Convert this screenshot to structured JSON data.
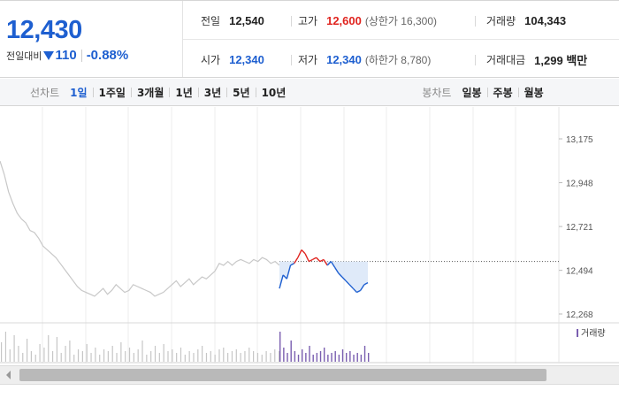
{
  "summary": {
    "current_price": "12,430",
    "change_label": "전일대비",
    "change_value": "110",
    "change_rate": "-0.88%",
    "prev_close": {
      "label": "전일",
      "value": "12,540"
    },
    "high": {
      "label": "고가",
      "value": "12,600",
      "sub": "(상한가 16,300)"
    },
    "volume": {
      "label": "거래량",
      "value": "104,343"
    },
    "open": {
      "label": "시가",
      "value": "12,340"
    },
    "low": {
      "label": "저가",
      "value": "12,340",
      "sub": "(하한가 8,780)"
    },
    "trade_amount": {
      "label": "거래대금",
      "value": "1,299 백만"
    }
  },
  "tabs": {
    "line_label": "선차트",
    "line_items": [
      "1일",
      "1주일",
      "3개월",
      "1년",
      "3년",
      "5년",
      "10년"
    ],
    "active": "1일",
    "candle_label": "봉차트",
    "candle_items": [
      "일봉",
      "주봉",
      "월봉"
    ]
  },
  "colors": {
    "up": "#e0241f",
    "down": "#1e5fd0",
    "history": "#c8c8c8",
    "volume_today": "#7a5fb0"
  },
  "chart_data": {
    "type": "line",
    "y_ticks": [
      "13,175",
      "12,948",
      "12,721",
      "12,494",
      "12,268"
    ],
    "ylim": [
      12268,
      13175
    ],
    "prev_close": 12540,
    "legend": "거래량",
    "history_series": [
      13060,
      12990,
      12900,
      12840,
      12790,
      12760,
      12740,
      12700,
      12690,
      12660,
      12620,
      12600,
      12580,
      12560,
      12530,
      12500,
      12470,
      12440,
      12410,
      12390,
      12380,
      12370,
      12360,
      12380,
      12400,
      12370,
      12390,
      12420,
      12400,
      12380,
      12390,
      12420,
      12410,
      12400,
      12390,
      12380,
      12360,
      12370,
      12380,
      12400,
      12420,
      12440,
      12410,
      12430,
      12450,
      12420,
      12440,
      12460,
      12450,
      12470,
      12490,
      12530,
      12520,
      12540,
      12520,
      12540,
      12550,
      12540,
      12530,
      12550,
      12540,
      12560,
      12550,
      12530,
      12540,
      12520
    ],
    "today_series": [
      12400,
      12470,
      12450,
      12520,
      12530,
      12560,
      12600,
      12580,
      12540,
      12550,
      12560,
      12540,
      12550,
      12520,
      12540,
      12510,
      12480,
      12460,
      12440,
      12420,
      12400,
      12380,
      12390,
      12420,
      12430
    ],
    "history_volume": [
      22,
      34,
      14,
      30,
      18,
      10,
      26,
      12,
      8,
      20,
      16,
      30,
      12,
      28,
      10,
      18,
      24,
      8,
      14,
      12,
      20,
      10,
      16,
      8,
      14,
      12,
      18,
      10,
      22,
      12,
      16,
      10,
      14,
      24,
      8,
      12,
      18,
      10,
      20,
      12,
      14,
      10,
      16,
      8,
      12,
      10,
      14,
      18,
      10,
      12,
      8,
      14,
      16,
      10,
      12,
      14,
      10,
      12,
      16,
      12,
      10,
      8,
      12,
      10,
      14,
      12
    ],
    "today_volume": [
      34,
      16,
      10,
      24,
      12,
      8,
      14,
      10,
      18,
      8,
      10,
      12,
      16,
      8,
      10,
      12,
      8,
      14,
      10,
      12,
      8,
      10,
      8,
      18,
      10
    ]
  },
  "scrollbar": {
    "position": 0.05
  }
}
